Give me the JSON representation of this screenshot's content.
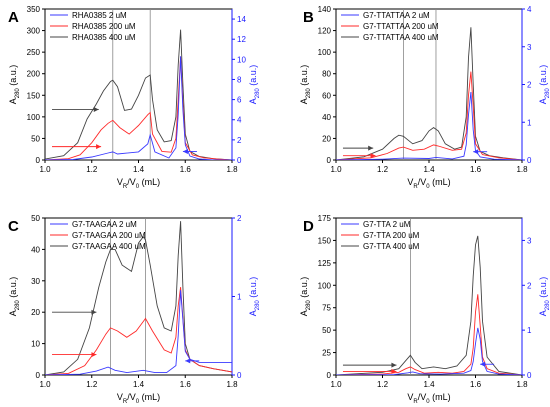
{
  "colors": {
    "blue": "#3a3aff",
    "red": "#ff2a2a",
    "black": "#444444",
    "axis": "#000000",
    "rightAxis": "#1a1aff"
  },
  "chart_data": [
    {
      "panel": "A",
      "type": "line",
      "legend": [
        "RHA0385 2 uM",
        "RHA0385 200 uM",
        "RHA0385 400 uM"
      ],
      "xlabel": {
        "main": "V",
        "sub1": "R",
        "mid": "/V",
        "sub2": "0",
        "tail": " (mL)"
      },
      "ylabel": {
        "main": "A",
        "sub": "280",
        "tail": " (a.u.)"
      },
      "y2label": {
        "main": "A",
        "sub": "280",
        "tail": " (a.u.)"
      },
      "xlim": [
        1.0,
        1.8
      ],
      "ylim": [
        0,
        350
      ],
      "y2lim": [
        0,
        15
      ],
      "xticks": [
        "1.0",
        "1.2",
        "1.4",
        "1.6",
        "1.8"
      ],
      "yticks": [
        "0",
        "50",
        "100",
        "150",
        "200",
        "250",
        "300",
        "350"
      ],
      "y2ticks": [
        "0",
        "2",
        "4",
        "6",
        "8",
        "10",
        "12",
        "14"
      ],
      "vlines": [
        1.29,
        1.45
      ],
      "arrows": [
        {
          "axis": "left",
          "color": "black",
          "x0": 1.03,
          "x1": 1.23,
          "y": 117
        },
        {
          "axis": "left",
          "color": "red",
          "x0": 1.03,
          "x1": 1.24,
          "y": 31
        },
        {
          "axis": "right",
          "color": "blue",
          "x0": 1.65,
          "x1": 1.59,
          "y": 0.85
        }
      ],
      "series": [
        {
          "name": "RHA0385 2 uM",
          "axis": "right",
          "color": "blue",
          "x": [
            1.0,
            1.12,
            1.2,
            1.27,
            1.29,
            1.31,
            1.4,
            1.44,
            1.45,
            1.47,
            1.53,
            1.56,
            1.57,
            1.58,
            1.59,
            1.6,
            1.62,
            1.66,
            1.72,
            1.8
          ],
          "y": [
            0,
            0.05,
            0.3,
            0.7,
            0.8,
            0.6,
            0.8,
            1.6,
            2.5,
            0.8,
            0.2,
            1.2,
            4.5,
            10.3,
            5.0,
            1.5,
            0.4,
            0.1,
            0,
            0
          ]
        },
        {
          "name": "RHA0385 200 uM",
          "axis": "left",
          "color": "red",
          "x": [
            1.0,
            1.1,
            1.15,
            1.2,
            1.24,
            1.27,
            1.29,
            1.32,
            1.36,
            1.4,
            1.44,
            1.45,
            1.46,
            1.5,
            1.54,
            1.56,
            1.57,
            1.58,
            1.59,
            1.6,
            1.63,
            1.68,
            1.74,
            1.8
          ],
          "y": [
            0,
            3,
            12,
            40,
            70,
            85,
            92,
            75,
            60,
            80,
            105,
            110,
            60,
            20,
            18,
            50,
            140,
            240,
            130,
            40,
            12,
            5,
            2,
            0
          ]
        },
        {
          "name": "RHA0385 400 uM",
          "axis": "left",
          "color": "black",
          "x": [
            1.0,
            1.08,
            1.14,
            1.18,
            1.22,
            1.25,
            1.28,
            1.29,
            1.31,
            1.34,
            1.37,
            1.4,
            1.43,
            1.45,
            1.46,
            1.48,
            1.51,
            1.54,
            1.56,
            1.57,
            1.58,
            1.59,
            1.6,
            1.62,
            1.66,
            1.72,
            1.8
          ],
          "y": [
            2,
            10,
            40,
            95,
            130,
            160,
            182,
            185,
            170,
            115,
            118,
            150,
            190,
            197,
            140,
            70,
            42,
            45,
            100,
            220,
            302,
            175,
            60,
            20,
            8,
            3,
            0
          ]
        }
      ]
    },
    {
      "panel": "B",
      "type": "line",
      "legend": [
        "G7-TTATTAA 2 uM",
        "G7-TTATTAA 200 uM",
        "G7-TTATTAA 400 uM"
      ],
      "xlabel": {
        "main": "V",
        "sub1": "R",
        "mid": "/V",
        "sub2": "0",
        "tail": " (mL)"
      },
      "ylabel": {
        "main": "A",
        "sub": "280",
        "tail": " (a.u.)"
      },
      "y2label": {
        "main": "A",
        "sub": "280",
        "tail": " (a.u.)"
      },
      "xlim": [
        1.0,
        1.8
      ],
      "ylim": [
        0,
        140
      ],
      "y2lim": [
        0,
        4
      ],
      "xticks": [
        "1.0",
        "1.2",
        "1.4",
        "1.6",
        "1.8"
      ],
      "yticks": [
        "0",
        "20",
        "40",
        "60",
        "80",
        "100",
        "120",
        "140"
      ],
      "y2ticks": [
        "0",
        "1",
        "2",
        "3",
        "4"
      ],
      "vlines": [
        1.29,
        1.43
      ],
      "arrows": [
        {
          "axis": "left",
          "color": "black",
          "x0": 1.03,
          "x1": 1.16,
          "y": 11
        },
        {
          "axis": "left",
          "color": "red",
          "x0": 1.03,
          "x1": 1.17,
          "y": 4
        },
        {
          "axis": "right",
          "color": "blue",
          "x0": 1.65,
          "x1": 1.59,
          "y": 0.22
        }
      ],
      "series": [
        {
          "name": "G7-TTATTAA 2 uM",
          "axis": "right",
          "color": "blue",
          "x": [
            1.0,
            1.2,
            1.29,
            1.4,
            1.43,
            1.5,
            1.55,
            1.56,
            1.57,
            1.58,
            1.59,
            1.6,
            1.62,
            1.68,
            1.8
          ],
          "y": [
            0,
            0.02,
            0.05,
            0.04,
            0.07,
            0.03,
            0.1,
            0.4,
            1.2,
            1.8,
            0.8,
            0.25,
            0.08,
            0.02,
            0
          ]
        },
        {
          "name": "G7-TTATTAA 200 uM",
          "axis": "left",
          "color": "red",
          "x": [
            1.0,
            1.15,
            1.22,
            1.27,
            1.29,
            1.33,
            1.38,
            1.42,
            1.44,
            1.5,
            1.54,
            1.56,
            1.57,
            1.58,
            1.59,
            1.6,
            1.63,
            1.7,
            1.8
          ],
          "y": [
            0,
            2,
            6,
            11,
            12,
            9,
            10,
            14,
            13,
            9,
            10,
            25,
            60,
            82,
            50,
            15,
            5,
            2,
            0
          ]
        },
        {
          "name": "G7-TTATTAA 400 uM",
          "axis": "left",
          "color": "black",
          "x": [
            1.0,
            1.12,
            1.2,
            1.25,
            1.27,
            1.29,
            1.33,
            1.37,
            1.4,
            1.42,
            1.44,
            1.47,
            1.51,
            1.54,
            1.56,
            1.57,
            1.58,
            1.59,
            1.6,
            1.62,
            1.66,
            1.72,
            1.8
          ],
          "y": [
            0,
            3,
            10,
            20,
            23,
            22,
            15,
            18,
            27,
            30,
            27,
            15,
            10,
            12,
            40,
            95,
            123,
            70,
            22,
            8,
            4,
            2,
            0
          ]
        }
      ]
    },
    {
      "panel": "C",
      "type": "line",
      "legend": [
        "G7-TAAGAA 2 uM",
        "G7-TAAGAA 200 uM",
        "G7-TAAGAA 400 uM"
      ],
      "xlabel": {
        "main": "V",
        "sub1": "R",
        "mid": "/V",
        "sub2": "0",
        "tail": " (mL)"
      },
      "ylabel": {
        "main": "A",
        "sub": "280",
        "tail": " (a.u.)"
      },
      "y2label": {
        "main": "A",
        "sub": "280",
        "tail": " (a.u.)"
      },
      "xlim": [
        1.0,
        1.8
      ],
      "ylim": [
        0,
        50
      ],
      "y2lim": [
        0,
        2
      ],
      "xticks": [
        "1.0",
        "1.2",
        "1.4",
        "1.6",
        "1.8"
      ],
      "yticks": [
        "0",
        "10",
        "20",
        "30",
        "40",
        "50"
      ],
      "y2ticks": [
        "0",
        "1",
        "2"
      ],
      "vlines": [
        1.28,
        1.43
      ],
      "arrows": [
        {
          "axis": "left",
          "color": "black",
          "x0": 1.03,
          "x1": 1.22,
          "y": 20
        },
        {
          "axis": "left",
          "color": "red",
          "x0": 1.03,
          "x1": 1.22,
          "y": 6.5
        },
        {
          "axis": "right",
          "color": "blue",
          "x0": 1.66,
          "x1": 1.6,
          "y": 0.18
        }
      ],
      "series": [
        {
          "name": "G7-TAAGAA 2 uM",
          "axis": "right",
          "color": "blue",
          "x": [
            1.0,
            1.15,
            1.22,
            1.27,
            1.3,
            1.35,
            1.42,
            1.47,
            1.52,
            1.56,
            1.57,
            1.58,
            1.59,
            1.6,
            1.62,
            1.66,
            1.72,
            1.8
          ],
          "y": [
            0,
            0.01,
            0.05,
            0.1,
            0.06,
            0.03,
            0.06,
            0.03,
            0.03,
            0.12,
            0.5,
            1.08,
            0.7,
            0.3,
            0.2,
            0.16,
            0.16,
            0.16
          ]
        },
        {
          "name": "G7-TAAGAA 200 uM",
          "axis": "left",
          "color": "red",
          "x": [
            1.0,
            1.1,
            1.17,
            1.22,
            1.26,
            1.28,
            1.31,
            1.35,
            1.39,
            1.42,
            1.43,
            1.46,
            1.51,
            1.54,
            1.56,
            1.57,
            1.58,
            1.59,
            1.6,
            1.62,
            1.66,
            1.72,
            1.8
          ],
          "y": [
            0,
            0.5,
            3,
            8,
            13,
            15,
            14,
            12,
            14,
            17,
            18,
            14,
            8,
            7,
            12,
            22,
            28,
            18,
            8,
            5,
            3,
            2,
            1
          ]
        },
        {
          "name": "G7-TAAGAA 400 uM",
          "axis": "left",
          "color": "black",
          "x": [
            1.0,
            1.08,
            1.14,
            1.19,
            1.23,
            1.26,
            1.28,
            1.3,
            1.33,
            1.37,
            1.4,
            1.42,
            1.43,
            1.45,
            1.48,
            1.51,
            1.54,
            1.56,
            1.57,
            1.58,
            1.59,
            1.6,
            1.62,
            1.66,
            1.72,
            1.8
          ],
          "y": [
            0,
            1,
            5,
            15,
            28,
            36,
            40,
            40,
            35,
            33,
            42,
            44,
            43,
            35,
            22,
            15,
            14,
            22,
            38,
            49,
            28,
            10,
            5,
            3,
            2,
            1
          ]
        }
      ]
    },
    {
      "panel": "D",
      "type": "line",
      "legend": [
        "G7-TTA 2 uM",
        "G7-TTA 200 uM",
        "G7-TTA 400 uM"
      ],
      "xlabel": {
        "main": "V",
        "sub1": "R",
        "mid": "/V",
        "sub2": "0",
        "tail": " (mL)"
      },
      "ylabel": {
        "main": "A",
        "sub": "280",
        "tail": " (a.u.)"
      },
      "y2label": {
        "main": "A",
        "sub": "280",
        "tail": " (a.u.)"
      },
      "xlim": [
        1.0,
        1.8
      ],
      "ylim": [
        0,
        175
      ],
      "y2lim": [
        0,
        3.5
      ],
      "xticks": [
        "1.0",
        "1.2",
        "1.4",
        "1.6",
        "1.8"
      ],
      "yticks": [
        "0",
        "25",
        "50",
        "75",
        "100",
        "125",
        "150",
        "175"
      ],
      "y2ticks": [
        "0",
        "1",
        "2",
        "3"
      ],
      "vlines": [
        1.32
      ],
      "arrows": [
        {
          "axis": "left",
          "color": "black",
          "x0": 1.03,
          "x1": 1.26,
          "y": 11
        },
        {
          "axis": "left",
          "color": "red",
          "x0": 1.03,
          "x1": 1.26,
          "y": 4
        },
        {
          "axis": "right",
          "color": "blue",
          "x0": 1.68,
          "x1": 1.62,
          "y": 0.24
        }
      ],
      "series": [
        {
          "name": "G7-TTA 2 uM",
          "axis": "right",
          "color": "blue",
          "x": [
            1.0,
            1.25,
            1.31,
            1.33,
            1.36,
            1.45,
            1.55,
            1.58,
            1.59,
            1.6,
            1.61,
            1.62,
            1.63,
            1.65,
            1.7,
            1.8
          ],
          "y": [
            0,
            0.01,
            0.05,
            0.07,
            0.03,
            0.02,
            0.04,
            0.1,
            0.3,
            0.7,
            1.05,
            0.8,
            0.3,
            0.08,
            0.02,
            0
          ]
        },
        {
          "name": "G7-TTA 200 uM",
          "axis": "left",
          "color": "red",
          "x": [
            1.0,
            1.2,
            1.27,
            1.3,
            1.32,
            1.34,
            1.38,
            1.44,
            1.5,
            1.55,
            1.58,
            1.59,
            1.6,
            1.61,
            1.62,
            1.63,
            1.65,
            1.7,
            1.8
          ],
          "y": [
            0,
            1,
            3,
            7,
            9,
            6,
            2,
            3,
            2,
            4,
            12,
            30,
            70,
            90,
            55,
            20,
            7,
            2,
            0
          ]
        },
        {
          "name": "G7-TTA 400 uM",
          "axis": "left",
          "color": "black",
          "x": [
            1.0,
            1.2,
            1.27,
            1.3,
            1.32,
            1.34,
            1.37,
            1.42,
            1.47,
            1.52,
            1.56,
            1.58,
            1.59,
            1.6,
            1.61,
            1.62,
            1.63,
            1.65,
            1.7,
            1.8
          ],
          "y": [
            0,
            3,
            7,
            16,
            22,
            14,
            7,
            9,
            7,
            10,
            22,
            60,
            110,
            145,
            155,
            120,
            60,
            20,
            4,
            0
          ]
        }
      ]
    }
  ]
}
